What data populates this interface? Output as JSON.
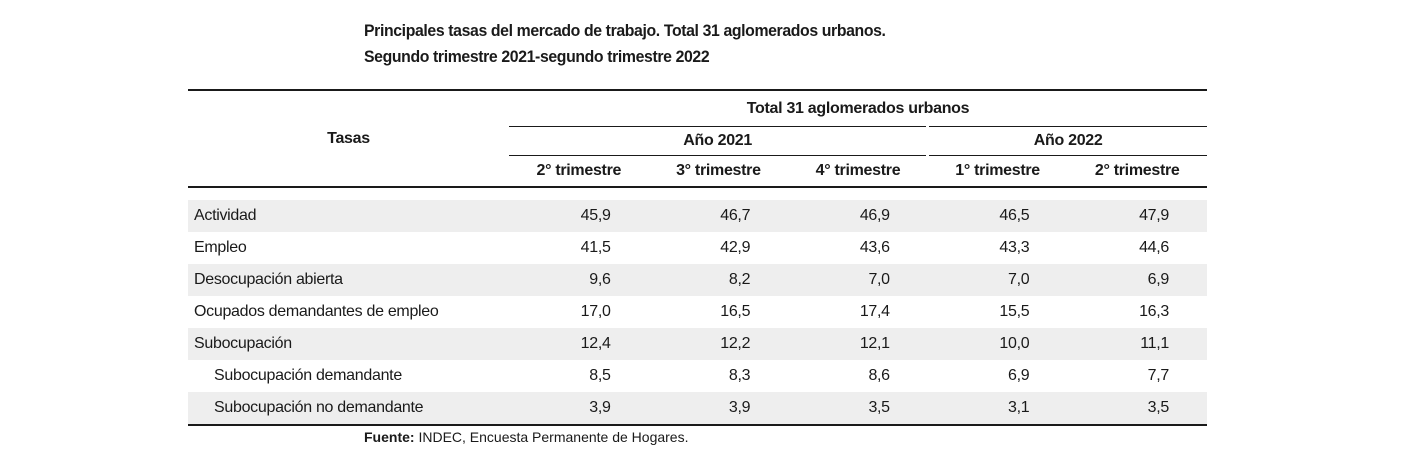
{
  "title": {
    "line1": "Principales tasas del mercado de trabajo. Total 31 aglomerados urbanos.",
    "line2": "Segundo trimestre 2021-segundo trimestre 2022"
  },
  "table": {
    "row_header": "Tasas",
    "group_header": "Total 31 aglomerados urbanos",
    "years": [
      {
        "label": "Año 2021",
        "span": 3
      },
      {
        "label": "Año 2022",
        "span": 2
      }
    ],
    "quarters": [
      "2° trimestre",
      "3° trimestre",
      "4° trimestre",
      "1° trimestre",
      "2° trimestre"
    ],
    "rows": [
      {
        "label": "Actividad",
        "values": [
          "45,9",
          "46,7",
          "46,9",
          "46,5",
          "47,9"
        ],
        "indent": false
      },
      {
        "label": "Empleo",
        "values": [
          "41,5",
          "42,9",
          "43,6",
          "43,3",
          "44,6"
        ],
        "indent": false
      },
      {
        "label": "Desocupación abierta",
        "values": [
          "9,6",
          "8,2",
          "7,0",
          "7,0",
          "6,9"
        ],
        "indent": false
      },
      {
        "label": "Ocupados demandantes de empleo",
        "values": [
          "17,0",
          "16,5",
          "17,4",
          "15,5",
          "16,3"
        ],
        "indent": false
      },
      {
        "label": "Subocupación",
        "values": [
          "12,4",
          "12,2",
          "12,1",
          "10,0",
          "11,1"
        ],
        "indent": false
      },
      {
        "label": "Subocupación demandante",
        "values": [
          "8,5",
          "8,3",
          "8,6",
          "6,9",
          "7,7"
        ],
        "indent": true
      },
      {
        "label": "Subocupación no demandante",
        "values": [
          "3,9",
          "3,9",
          "3,5",
          "3,1",
          "3,5"
        ],
        "indent": true
      }
    ]
  },
  "source": {
    "label": "Fuente:",
    "text": " INDEC, Encuesta Permanente de Hogares."
  },
  "colors": {
    "text": "#1a1a1a",
    "row_shade": "#eeeeee",
    "rule": "#1a1a1a"
  }
}
